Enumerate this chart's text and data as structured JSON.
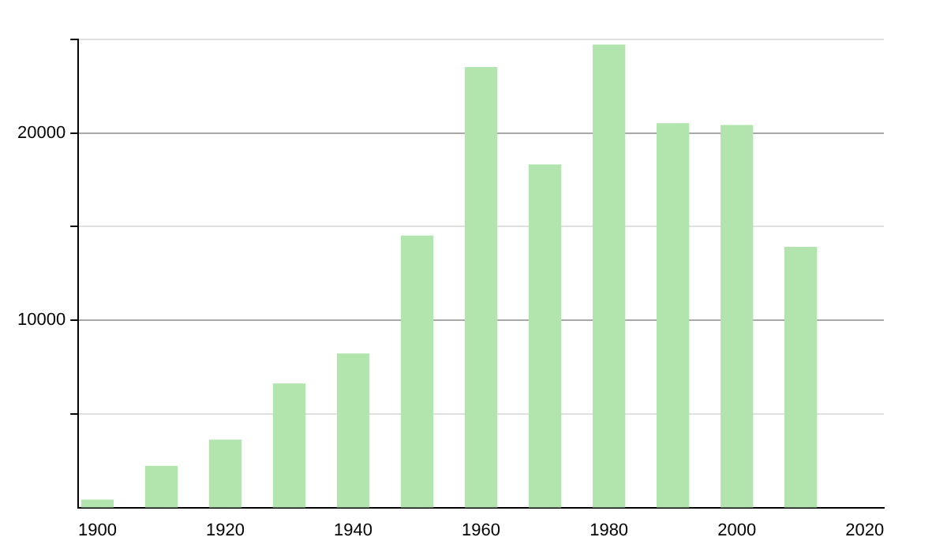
{
  "chart_data": {
    "type": "bar",
    "x": [
      1900,
      1910,
      1920,
      1930,
      1940,
      1950,
      1960,
      1970,
      1980,
      1990,
      2000,
      2010
    ],
    "values": [
      400,
      2200,
      3600,
      6600,
      8200,
      14500,
      23500,
      18300,
      24700,
      20500,
      20400,
      13900
    ],
    "color": "#b1e5ad",
    "xlim": [
      1897,
      2023
    ],
    "xticks": [
      1900,
      1920,
      1940,
      1960,
      1980,
      2000,
      2020
    ],
    "ylim": [
      0,
      25000
    ],
    "yticks": [
      {
        "value": 5000,
        "label": null
      },
      10000,
      {
        "value": 15000,
        "label": null
      },
      20000,
      {
        "value": 25000,
        "label": null
      }
    ],
    "grid": "y"
  }
}
